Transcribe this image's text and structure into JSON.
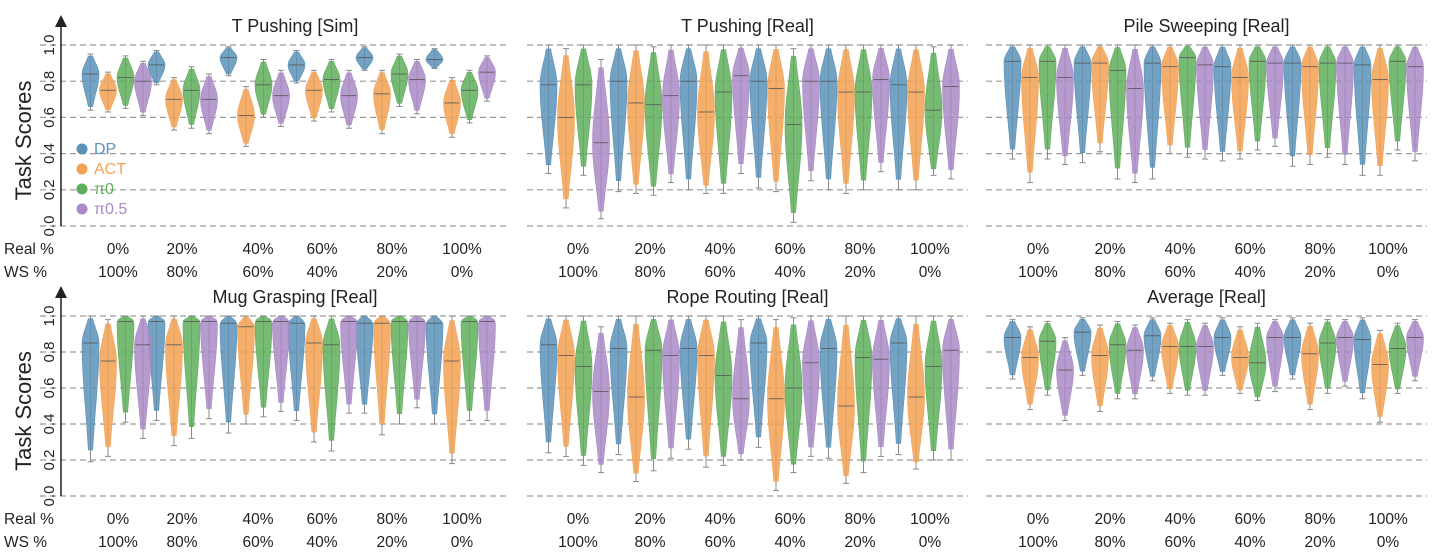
{
  "shared": {
    "ylabel": "Task Scores",
    "yticks": [
      "0.0",
      "0.2",
      "0.4",
      "0.6",
      "0.8",
      "1.0"
    ],
    "ylim": [
      0,
      1
    ],
    "row_labels": [
      "Real %",
      "WS %"
    ],
    "real_pct": [
      "0%",
      "20%",
      "40%",
      "60%",
      "80%",
      "100%"
    ],
    "ws_pct": [
      "100%",
      "80%",
      "60%",
      "40%",
      "20%",
      "0%"
    ],
    "grid": "dashed horizontal at 0.0, 0.2, 0.4, 0.6, 0.8, 1.0"
  },
  "legend": {
    "placement": "left, inside first panel",
    "items": [
      {
        "label": "DP",
        "color": "#5b92b8"
      },
      {
        "label": "ACT",
        "color": "#f3a153"
      },
      {
        "label": "π0",
        "color": "#5fae5c"
      },
      {
        "label": "π0.5",
        "color": "#a989c7"
      }
    ]
  },
  "chart_data": [
    {
      "type": "violin",
      "title": "T Pushing [Sim]",
      "categories": [
        "0%",
        "20%",
        "40%",
        "60%",
        "80%",
        "100%"
      ],
      "series": [
        {
          "name": "DP",
          "median": [
            0.84,
            0.89,
            0.93,
            0.89,
            0.93,
            0.92
          ],
          "min": [
            0.64,
            0.78,
            0.83,
            0.79,
            0.86,
            0.87
          ],
          "max": [
            0.95,
            0.97,
            0.99,
            0.97,
            0.99,
            0.98
          ]
        },
        {
          "name": "ACT",
          "median": [
            0.75,
            0.7,
            0.61,
            0.75,
            0.73,
            0.68
          ],
          "min": [
            0.63,
            0.53,
            0.44,
            0.58,
            0.51,
            0.49
          ],
          "max": [
            0.85,
            0.82,
            0.77,
            0.86,
            0.86,
            0.82
          ]
        },
        {
          "name": "π0",
          "median": [
            0.82,
            0.75,
            0.78,
            0.81,
            0.84,
            0.75
          ],
          "min": [
            0.65,
            0.54,
            0.6,
            0.63,
            0.66,
            0.57
          ],
          "max": [
            0.94,
            0.88,
            0.92,
            0.92,
            0.95,
            0.86
          ]
        },
        {
          "name": "π0.5",
          "median": [
            0.8,
            0.7,
            0.72,
            0.72,
            0.81,
            0.85
          ],
          "min": [
            0.61,
            0.51,
            0.55,
            0.54,
            0.62,
            0.69
          ],
          "max": [
            0.91,
            0.84,
            0.86,
            0.86,
            0.92,
            0.94
          ]
        }
      ]
    },
    {
      "type": "violin",
      "title": "T Pushing [Real]",
      "categories": [
        "0%",
        "20%",
        "40%",
        "60%",
        "80%",
        "100%"
      ],
      "series": [
        {
          "name": "DP",
          "median": [
            0.78,
            0.8,
            0.8,
            0.8,
            0.8,
            0.78
          ],
          "min": [
            0.29,
            0.19,
            0.2,
            0.21,
            0.2,
            0.2
          ],
          "max": [
            1.0,
            1.0,
            1.0,
            1.0,
            1.0,
            1.0
          ]
        },
        {
          "name": "ACT",
          "median": [
            0.6,
            0.68,
            0.63,
            0.76,
            0.74,
            0.74
          ],
          "min": [
            0.1,
            0.18,
            0.18,
            0.19,
            0.18,
            0.2
          ],
          "max": [
            0.98,
            1.0,
            1.0,
            1.0,
            1.0,
            1.0
          ]
        },
        {
          "name": "π0",
          "median": [
            0.78,
            0.67,
            0.74,
            0.56,
            0.74,
            0.64
          ],
          "min": [
            0.28,
            0.17,
            0.18,
            0.02,
            0.2,
            0.28
          ],
          "max": [
            1.0,
            0.99,
            1.0,
            0.98,
            1.0,
            0.99
          ]
        },
        {
          "name": "π0.5",
          "median": [
            0.46,
            0.72,
            0.83,
            0.8,
            0.81,
            0.77
          ],
          "min": [
            0.04,
            0.24,
            0.29,
            0.25,
            0.3,
            0.26
          ],
          "max": [
            0.92,
            1.0,
            1.0,
            1.0,
            1.0,
            1.0
          ]
        }
      ]
    },
    {
      "type": "violin",
      "title": "Pile Sweeping [Real]",
      "categories": [
        "0%",
        "20%",
        "40%",
        "60%",
        "80%",
        "100%"
      ],
      "series": [
        {
          "name": "DP",
          "median": [
            0.91,
            0.9,
            0.9,
            0.88,
            0.9,
            0.89
          ],
          "min": [
            0.37,
            0.35,
            0.26,
            0.36,
            0.33,
            0.28
          ],
          "max": [
            1.0,
            1.0,
            1.0,
            1.0,
            1.0,
            1.0
          ]
        },
        {
          "name": "ACT",
          "median": [
            0.82,
            0.9,
            0.88,
            0.82,
            0.88,
            0.81
          ],
          "min": [
            0.24,
            0.41,
            0.4,
            0.37,
            0.34,
            0.28
          ],
          "max": [
            1.0,
            1.0,
            1.0,
            1.0,
            1.0,
            1.0
          ]
        },
        {
          "name": "π0",
          "median": [
            0.91,
            0.86,
            0.93,
            0.91,
            0.9,
            0.91
          ],
          "min": [
            0.37,
            0.26,
            0.38,
            0.42,
            0.38,
            0.42
          ],
          "max": [
            1.0,
            1.0,
            1.0,
            1.0,
            1.0,
            1.0
          ]
        },
        {
          "name": "π0.5",
          "median": [
            0.82,
            0.76,
            0.89,
            0.9,
            0.9,
            0.88
          ],
          "min": [
            0.34,
            0.24,
            0.37,
            0.44,
            0.34,
            0.36
          ],
          "max": [
            1.0,
            1.0,
            1.0,
            1.0,
            1.0,
            1.0
          ]
        }
      ]
    },
    {
      "type": "violin",
      "title": "Mug Grasping [Real]",
      "categories": [
        "0%",
        "20%",
        "40%",
        "60%",
        "80%",
        "100%"
      ],
      "series": [
        {
          "name": "DP",
          "median": [
            0.85,
            0.97,
            0.96,
            0.96,
            0.96,
            0.96
          ],
          "min": [
            0.19,
            0.42,
            0.35,
            0.42,
            0.46,
            0.4
          ],
          "max": [
            1.0,
            1.0,
            1.0,
            1.0,
            1.0,
            1.0
          ]
        },
        {
          "name": "ACT",
          "median": [
            0.75,
            0.84,
            0.94,
            0.85,
            0.96,
            0.75
          ],
          "min": [
            0.22,
            0.28,
            0.4,
            0.3,
            0.34,
            0.18
          ],
          "max": [
            0.98,
            1.0,
            1.0,
            1.0,
            1.0,
            1.0
          ]
        },
        {
          "name": "π0",
          "median": [
            0.97,
            0.97,
            0.97,
            0.84,
            0.97,
            0.97
          ],
          "min": [
            0.41,
            0.32,
            0.44,
            0.25,
            0.4,
            0.42
          ],
          "max": [
            1.0,
            1.0,
            1.0,
            1.0,
            1.0,
            1.0
          ]
        },
        {
          "name": "π0.5",
          "median": [
            0.84,
            0.97,
            0.97,
            0.97,
            0.97,
            0.97
          ],
          "min": [
            0.32,
            0.43,
            0.47,
            0.46,
            0.49,
            0.42
          ],
          "max": [
            1.0,
            1.0,
            1.0,
            1.0,
            1.0,
            1.0
          ]
        }
      ]
    },
    {
      "type": "violin",
      "title": "Rope Routing [Real]",
      "categories": [
        "0%",
        "20%",
        "40%",
        "60%",
        "80%",
        "100%"
      ],
      "series": [
        {
          "name": "DP",
          "median": [
            0.84,
            0.82,
            0.82,
            0.85,
            0.82,
            0.85
          ],
          "min": [
            0.24,
            0.23,
            0.26,
            0.27,
            0.21,
            0.23
          ],
          "max": [
            1.0,
            1.0,
            1.0,
            1.0,
            1.0,
            1.0
          ]
        },
        {
          "name": "ACT",
          "median": [
            0.78,
            0.55,
            0.78,
            0.54,
            0.5,
            0.55
          ],
          "min": [
            0.22,
            0.08,
            0.16,
            0.03,
            0.07,
            0.15
          ],
          "max": [
            1.0,
            1.0,
            1.0,
            0.98,
            1.0,
            1.0
          ]
        },
        {
          "name": "π0",
          "median": [
            0.72,
            0.81,
            0.67,
            0.6,
            0.77,
            0.72
          ],
          "min": [
            0.17,
            0.14,
            0.17,
            0.13,
            0.13,
            0.2
          ],
          "max": [
            1.0,
            1.0,
            1.0,
            0.99,
            1.0,
            1.0
          ]
        },
        {
          "name": "π0.5",
          "median": [
            0.58,
            0.78,
            0.54,
            0.74,
            0.76,
            0.81
          ],
          "min": [
            0.13,
            0.21,
            0.2,
            0.22,
            0.22,
            0.2
          ],
          "max": [
            0.94,
            1.0,
            0.98,
            1.0,
            1.0,
            1.0
          ]
        }
      ]
    },
    {
      "type": "violin",
      "title": "Average [Real]",
      "categories": [
        "0%",
        "20%",
        "40%",
        "60%",
        "80%",
        "100%"
      ],
      "series": [
        {
          "name": "DP",
          "median": [
            0.88,
            0.91,
            0.89,
            0.88,
            0.88,
            0.87
          ],
          "min": [
            0.65,
            0.67,
            0.64,
            0.67,
            0.65,
            0.54
          ],
          "max": [
            0.98,
            0.99,
            0.99,
            0.99,
            0.99,
            0.99
          ]
        },
        {
          "name": "ACT",
          "median": [
            0.77,
            0.78,
            0.83,
            0.77,
            0.79,
            0.73
          ],
          "min": [
            0.48,
            0.47,
            0.57,
            0.57,
            0.48,
            0.41
          ],
          "max": [
            0.94,
            0.95,
            0.96,
            0.94,
            0.96,
            0.92
          ]
        },
        {
          "name": "π0",
          "median": [
            0.86,
            0.84,
            0.83,
            0.74,
            0.85,
            0.82
          ],
          "min": [
            0.56,
            0.54,
            0.56,
            0.53,
            0.57,
            0.57
          ],
          "max": [
            0.97,
            0.97,
            0.98,
            0.96,
            0.98,
            0.96
          ]
        },
        {
          "name": "π0.5",
          "median": [
            0.7,
            0.81,
            0.83,
            0.88,
            0.88,
            0.88
          ],
          "min": [
            0.42,
            0.54,
            0.56,
            0.58,
            0.61,
            0.64
          ],
          "max": [
            0.88,
            0.95,
            0.96,
            0.98,
            0.98,
            0.98
          ]
        }
      ]
    }
  ]
}
